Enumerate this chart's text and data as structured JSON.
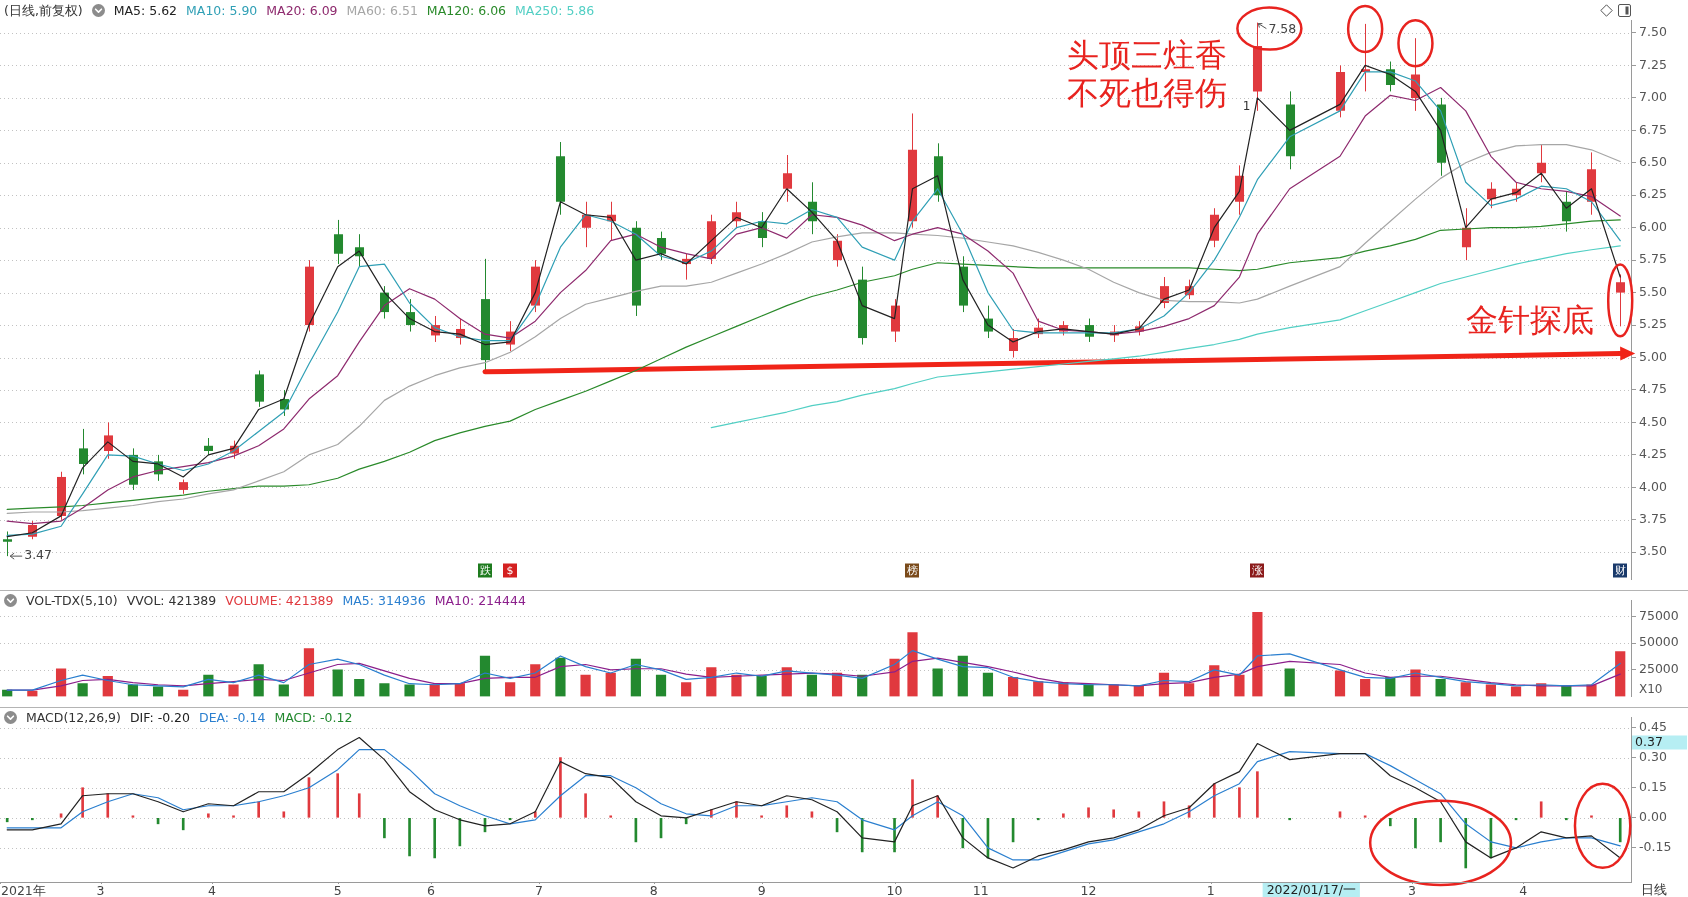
{
  "chart_data": [
    {
      "type": "candlestick",
      "title": "(日线,前复权)",
      "x": [
        "2021-02-03",
        "2021-02-10",
        "2021-02-18",
        "2021-02-24",
        "2021-03-03",
        "2021-03-10",
        "2021-03-17",
        "2021-03-24",
        "2021-03-31",
        "2021-04-07",
        "2021-04-14",
        "2021-04-21",
        "2021-04-28",
        "2021-05-06",
        "2021-05-12",
        "2021-05-19",
        "2021-05-26",
        "2021-06-02",
        "2021-06-09",
        "2021-06-16",
        "2021-06-23",
        "2021-06-30",
        "2021-07-07",
        "2021-07-14",
        "2021-07-21",
        "2021-07-28",
        "2021-08-04",
        "2021-08-11",
        "2021-08-18",
        "2021-08-25",
        "2021-09-01",
        "2021-09-08",
        "2021-09-15",
        "2021-09-22",
        "2021-09-29",
        "2021-10-08",
        "2021-10-13",
        "2021-10-20",
        "2021-10-27",
        "2021-11-03",
        "2021-11-10",
        "2021-11-17",
        "2021-11-24",
        "2021-12-01",
        "2021-12-08",
        "2021-12-15",
        "2021-12-22",
        "2021-12-29",
        "2022-01-05",
        "2022-01-12",
        "2022-01-17",
        "2022-01-26",
        "2022-02-09",
        "2022-02-16",
        "2022-02-23",
        "2022-03-02",
        "2022-03-09",
        "2022-03-16",
        "2022-03-23",
        "2022-03-30",
        "2022-04-06",
        "2022-04-13",
        "2022-04-20",
        "2022-04-28"
      ],
      "ohlc": [
        [
          3.6,
          3.66,
          3.47,
          3.58
        ],
        [
          3.62,
          3.74,
          3.6,
          3.71
        ],
        [
          3.78,
          4.12,
          3.75,
          4.08
        ],
        [
          4.3,
          4.45,
          4.1,
          4.18
        ],
        [
          4.28,
          4.5,
          4.22,
          4.4
        ],
        [
          4.25,
          4.3,
          3.98,
          4.02
        ],
        [
          4.2,
          4.25,
          4.05,
          4.1
        ],
        [
          3.98,
          4.06,
          3.95,
          4.04
        ],
        [
          4.32,
          4.38,
          4.25,
          4.28
        ],
        [
          4.26,
          4.36,
          4.22,
          4.32
        ],
        [
          4.87,
          4.9,
          4.62,
          4.66
        ],
        [
          4.68,
          4.75,
          4.55,
          4.6
        ],
        [
          5.25,
          5.75,
          5.2,
          5.7
        ],
        [
          5.95,
          6.06,
          5.72,
          5.8
        ],
        [
          5.85,
          5.95,
          5.7,
          5.78
        ],
        [
          5.5,
          5.55,
          5.3,
          5.35
        ],
        [
          5.35,
          5.45,
          5.2,
          5.25
        ],
        [
          5.17,
          5.32,
          5.12,
          5.25
        ],
        [
          5.15,
          5.3,
          5.1,
          5.22
        ],
        [
          5.45,
          5.76,
          4.89,
          4.98
        ],
        [
          5.1,
          5.28,
          5.05,
          5.2
        ],
        [
          5.4,
          5.75,
          5.35,
          5.7
        ],
        [
          6.55,
          6.66,
          6.1,
          6.2
        ],
        [
          6.0,
          6.2,
          5.85,
          6.1
        ],
        [
          6.05,
          6.2,
          5.9,
          6.1
        ],
        [
          6.0,
          6.05,
          5.32,
          5.4
        ],
        [
          5.92,
          5.97,
          5.75,
          5.8
        ],
        [
          5.72,
          5.8,
          5.6,
          5.76
        ],
        [
          5.76,
          6.1,
          5.72,
          6.05
        ],
        [
          6.05,
          6.2,
          6.0,
          6.12
        ],
        [
          6.05,
          6.12,
          5.85,
          5.92
        ],
        [
          6.3,
          6.56,
          6.2,
          6.42
        ],
        [
          6.2,
          6.35,
          5.95,
          6.05
        ],
        [
          5.75,
          5.95,
          5.7,
          5.9
        ],
        [
          5.6,
          5.7,
          5.1,
          5.15
        ],
        [
          5.2,
          5.45,
          5.12,
          5.4
        ],
        [
          6.05,
          6.88,
          6.0,
          6.6
        ],
        [
          6.55,
          6.65,
          6.2,
          6.25
        ],
        [
          5.7,
          5.78,
          5.35,
          5.4
        ],
        [
          5.3,
          5.4,
          5.15,
          5.2
        ],
        [
          5.05,
          5.22,
          5.0,
          5.15
        ],
        [
          5.18,
          5.3,
          5.15,
          5.23
        ],
        [
          5.2,
          5.28,
          5.17,
          5.25
        ],
        [
          5.25,
          5.3,
          5.12,
          5.16
        ],
        [
          5.17,
          5.25,
          5.12,
          5.2
        ],
        [
          5.2,
          5.28,
          5.17,
          5.24
        ],
        [
          5.42,
          5.62,
          5.38,
          5.55
        ],
        [
          5.48,
          5.6,
          5.45,
          5.55
        ],
        [
          5.9,
          6.15,
          5.85,
          6.1
        ],
        [
          6.2,
          6.48,
          6.1,
          6.4
        ],
        [
          7.05,
          7.58,
          6.9,
          7.4
        ],
        [
          6.95,
          7.05,
          6.45,
          6.55
        ],
        [
          6.9,
          7.25,
          6.85,
          7.2
        ],
        [
          7.2,
          7.57,
          7.05,
          7.22
        ],
        [
          7.22,
          7.28,
          7.05,
          7.1
        ],
        [
          7.0,
          7.46,
          6.9,
          7.18
        ],
        [
          6.95,
          7.0,
          6.4,
          6.5
        ],
        [
          5.85,
          6.15,
          5.75,
          6.0
        ],
        [
          6.22,
          6.35,
          6.15,
          6.3
        ],
        [
          6.25,
          6.35,
          6.2,
          6.3
        ],
        [
          6.42,
          6.64,
          6.35,
          6.5
        ],
        [
          6.2,
          6.28,
          5.97,
          6.05
        ],
        [
          6.2,
          6.58,
          6.1,
          6.45
        ],
        [
          5.5,
          5.64,
          5.24,
          5.58
        ]
      ],
      "colors": [
        "#23892f",
        "#e0393e",
        "#e0393e",
        "#23892f",
        "#e0393e",
        "#23892f",
        "#23892f",
        "#e0393e",
        "#23892f",
        "#e0393e",
        "#23892f",
        "#23892f",
        "#e0393e",
        "#23892f",
        "#23892f",
        "#23892f",
        "#23892f",
        "#e0393e",
        "#e0393e",
        "#23892f",
        "#e0393e",
        "#e0393e",
        "#23892f",
        "#e0393e",
        "#e0393e",
        "#23892f",
        "#23892f",
        "#e0393e",
        "#e0393e",
        "#e0393e",
        "#23892f",
        "#e0393e",
        "#23892f",
        "#e0393e",
        "#23892f",
        "#e0393e",
        "#e0393e",
        "#23892f",
        "#23892f",
        "#23892f",
        "#e0393e",
        "#e0393e",
        "#e0393e",
        "#23892f",
        "#e0393e",
        "#e0393e",
        "#e0393e",
        "#e0393e",
        "#e0393e",
        "#e0393e",
        "#e0393e",
        "#23892f",
        "#e0393e",
        "#e0393e",
        "#23892f",
        "#e0393e",
        "#23892f",
        "#e0393e",
        "#e0393e",
        "#e0393e",
        "#e0393e",
        "#23892f",
        "#e0393e",
        "#e0393e"
      ],
      "series": [
        {
          "name": "MA5: 5.62",
          "type": "line",
          "color": "#222222",
          "values": [
            3.62,
            3.65,
            3.78,
            4.15,
            4.35,
            4.2,
            4.18,
            4.08,
            4.25,
            4.3,
            4.6,
            4.68,
            5.25,
            5.7,
            5.82,
            5.5,
            5.3,
            5.2,
            5.18,
            5.1,
            5.12,
            5.5,
            6.2,
            6.1,
            6.08,
            5.75,
            5.8,
            5.72,
            5.9,
            6.08,
            6.0,
            6.3,
            6.12,
            5.9,
            5.4,
            5.3,
            6.3,
            6.4,
            5.6,
            5.25,
            5.12,
            5.2,
            5.22,
            5.2,
            5.18,
            5.22,
            5.45,
            5.52,
            6.0,
            6.28,
            7.0,
            6.75,
            6.95,
            7.25,
            7.18,
            7.05,
            6.75,
            6.0,
            6.22,
            6.27,
            6.42,
            6.15,
            6.3,
            5.62
          ]
        },
        {
          "name": "MA10: 5.90",
          "type": "line",
          "color": "#2f9fb5",
          "values": [
            3.63,
            3.64,
            3.7,
            3.95,
            4.25,
            4.24,
            4.18,
            4.13,
            4.18,
            4.28,
            4.43,
            4.58,
            4.95,
            5.35,
            5.7,
            5.72,
            5.42,
            5.23,
            5.16,
            5.13,
            5.13,
            5.4,
            5.85,
            6.1,
            6.05,
            5.95,
            5.78,
            5.73,
            5.82,
            6.0,
            6.05,
            6.03,
            6.14,
            6.08,
            5.85,
            5.75,
            6.05,
            6.3,
            5.95,
            5.5,
            5.21,
            5.19,
            5.19,
            5.19,
            5.19,
            5.22,
            5.32,
            5.5,
            5.75,
            6.08,
            6.37,
            6.7,
            6.9,
            7.2,
            7.2,
            7.13,
            6.9,
            6.35,
            6.17,
            6.22,
            6.32,
            6.3,
            6.2,
            5.9
          ]
        },
        {
          "name": "MA20: 6.09",
          "type": "line",
          "color": "#8e2a6e",
          "values": [
            3.74,
            3.72,
            3.74,
            3.84,
            3.98,
            4.08,
            4.13,
            4.16,
            4.19,
            4.24,
            4.32,
            4.45,
            4.68,
            4.86,
            5.12,
            5.4,
            5.53,
            5.45,
            5.3,
            5.18,
            5.15,
            5.28,
            5.5,
            5.67,
            5.9,
            5.95,
            5.85,
            5.8,
            5.76,
            5.95,
            6.0,
            5.92,
            6.1,
            6.08,
            6.02,
            5.9,
            5.95,
            6.0,
            5.95,
            5.82,
            5.65,
            5.28,
            5.21,
            5.2,
            5.18,
            5.2,
            5.24,
            5.3,
            5.4,
            5.62,
            5.95,
            6.3,
            6.55,
            6.86,
            7.02,
            6.98,
            7.08,
            6.9,
            6.55,
            6.35,
            6.3,
            6.28,
            6.24,
            6.09
          ]
        },
        {
          "name": "MA60: 6.51",
          "type": "line",
          "color": "#a6a6a6",
          "values": [
            3.8,
            3.81,
            3.81,
            3.82,
            3.84,
            3.86,
            3.89,
            3.91,
            3.95,
            3.98,
            4.05,
            4.12,
            4.25,
            4.33,
            4.47,
            4.67,
            4.78,
            4.86,
            4.92,
            4.96,
            5.04,
            5.16,
            5.3,
            5.41,
            5.46,
            5.51,
            5.55,
            5.55,
            5.58,
            5.65,
            5.72,
            5.8,
            5.89,
            5.93,
            5.96,
            5.96,
            5.95,
            5.94,
            5.92,
            5.89,
            5.86,
            5.81,
            5.75,
            5.68,
            5.58,
            5.5,
            5.44,
            5.43,
            5.43,
            5.42,
            5.45,
            5.55,
            5.7,
            5.88,
            6.05,
            6.22,
            6.38,
            6.5,
            6.58,
            6.63,
            6.64,
            6.64,
            6.6,
            6.51
          ]
        },
        {
          "name": "MA120: 6.06",
          "type": "line",
          "color": "#2a8a2a",
          "values": [
            3.83,
            3.84,
            3.85,
            3.86,
            3.88,
            3.9,
            3.92,
            3.94,
            3.97,
            3.99,
            4.01,
            4.01,
            4.02,
            4.07,
            4.14,
            4.2,
            4.27,
            4.36,
            4.42,
            4.47,
            4.51,
            4.6,
            4.67,
            4.74,
            4.82,
            4.9,
            4.99,
            5.08,
            5.16,
            5.24,
            5.32,
            5.4,
            5.47,
            5.52,
            5.58,
            5.63,
            5.68,
            5.73,
            5.72,
            5.71,
            5.7,
            5.69,
            5.69,
            5.69,
            5.69,
            5.69,
            5.69,
            5.69,
            5.68,
            5.67,
            5.68,
            5.73,
            5.77,
            5.82,
            5.86,
            5.91,
            5.98,
            5.99,
            6.0,
            6.0,
            6.01,
            6.03,
            6.05,
            6.06
          ]
        },
        {
          "name": "MA250: 5.86",
          "type": "line",
          "color": "#52cfc4",
          "values": [
            null,
            null,
            null,
            null,
            null,
            null,
            null,
            null,
            null,
            null,
            null,
            null,
            null,
            null,
            null,
            null,
            null,
            null,
            null,
            null,
            null,
            null,
            null,
            null,
            null,
            null,
            null,
            null,
            4.46,
            4.5,
            4.54,
            4.58,
            4.63,
            4.66,
            4.71,
            4.76,
            4.8,
            4.85,
            4.87,
            4.89,
            4.91,
            4.93,
            4.95,
            4.97,
            4.99,
            5.01,
            5.04,
            5.07,
            5.1,
            5.14,
            5.18,
            5.23,
            5.29,
            5.36,
            5.43,
            5.5,
            5.57,
            5.62,
            5.67,
            5.72,
            5.76,
            5.8,
            5.83,
            5.86
          ]
        },
        {
          "type": "line",
          "color": "#f02418",
          "x": [
            "2021-06-16",
            "2022-04-28"
          ],
          "values": [
            4.89,
            5.03
          ]
        }
      ],
      "xlim": [
        "2021-02-01",
        "2022-05-01"
      ],
      "ylim": [
        3.29,
        7.6
      ],
      "yticks": [
        {
          "value": 3.5,
          "label": "3.50"
        },
        {
          "value": 3.75,
          "label": "3.75"
        },
        {
          "value": 4,
          "label": "4.00"
        },
        {
          "value": 4.25,
          "label": "4.25"
        },
        {
          "value": 4.5,
          "label": "4.50"
        },
        {
          "value": 4.75,
          "label": "4.75"
        },
        {
          "value": 5,
          "label": "5.00"
        },
        {
          "value": 5.25,
          "label": "5.25"
        },
        {
          "value": 5.5,
          "label": "5.50"
        },
        {
          "value": 5.75,
          "label": "5.75"
        },
        {
          "value": 6,
          "label": "6.00"
        },
        {
          "value": 6.25,
          "label": "6.25"
        },
        {
          "value": 6.5,
          "label": "6.50"
        },
        {
          "value": 6.75,
          "label": "6.75"
        },
        {
          "value": 7,
          "label": "7.00"
        },
        {
          "value": 7.25,
          "label": "7.25"
        },
        {
          "value": 7.5,
          "label": "7.50"
        }
      ],
      "grid": "y",
      "legend": "top left",
      "tick_labels": "y",
      "annotations": [
        {
          "text": "7.58",
          "x": "2022-01-17",
          "y": 7.58
        },
        {
          "text": "3.47",
          "x": "2021-02-03",
          "y": 3.47
        },
        "1",
        "头顶三炷香不死也得伤",
        {
          "text": "金针探底",
          "x": "2022-04-28",
          "y": 5.24
        },
        {
          "text": "跌",
          "x": "2021-06-16"
        },
        {
          "text": "$",
          "x": "2021-06-23"
        },
        {
          "text": "榜",
          "x": "2021-10-13"
        },
        {
          "text": "涨",
          "x": "2022-01-17"
        },
        {
          "text": "财",
          "x": "2022-04-28"
        }
      ]
    },
    {
      "type": "bar",
      "title": "VOL-TDX(5,10)",
      "subtitle": "VVOL: 421389",
      "ylabel": "X10",
      "x": [
        "2021-02-03",
        "2021-02-10",
        "2021-02-18",
        "2021-02-24",
        "2021-03-03",
        "2021-03-10",
        "2021-03-17",
        "2021-03-24",
        "2021-03-31",
        "2021-04-07",
        "2021-04-14",
        "2021-04-21",
        "2021-04-28",
        "2021-05-06",
        "2021-05-12",
        "2021-05-19",
        "2021-05-26",
        "2021-06-02",
        "2021-06-09",
        "2021-06-16",
        "2021-06-23",
        "2021-06-30",
        "2021-07-07",
        "2021-07-14",
        "2021-07-21",
        "2021-07-28",
        "2021-08-04",
        "2021-08-11",
        "2021-08-18",
        "2021-08-25",
        "2021-09-01",
        "2021-09-08",
        "2021-09-15",
        "2021-09-22",
        "2021-09-29",
        "2021-10-08",
        "2021-10-13",
        "2021-10-20",
        "2021-10-27",
        "2021-11-03",
        "2021-11-10",
        "2021-11-17",
        "2021-11-24",
        "2021-12-01",
        "2021-12-08",
        "2021-12-15",
        "2021-12-22",
        "2021-12-29",
        "2022-01-05",
        "2022-01-12",
        "2022-01-17",
        "2022-01-26",
        "2022-02-09",
        "2022-02-16",
        "2022-02-23",
        "2022-03-02",
        "2022-03-09",
        "2022-03-16",
        "2022-03-23",
        "2022-03-30",
        "2022-04-06",
        "2022-04-13",
        "2022-04-20",
        "2022-04-28"
      ],
      "series": [
        {
          "name": "VOLUME: 421389",
          "colors": [
            "#23892f",
            "#e0393e",
            "#e0393e",
            "#23892f",
            "#e0393e",
            "#23892f",
            "#23892f",
            "#e0393e",
            "#23892f",
            "#e0393e",
            "#23892f",
            "#23892f",
            "#e0393e",
            "#23892f",
            "#23892f",
            "#23892f",
            "#23892f",
            "#e0393e",
            "#e0393e",
            "#23892f",
            "#e0393e",
            "#e0393e",
            "#23892f",
            "#e0393e",
            "#e0393e",
            "#23892f",
            "#23892f",
            "#e0393e",
            "#e0393e",
            "#e0393e",
            "#23892f",
            "#e0393e",
            "#23892f",
            "#e0393e",
            "#23892f",
            "#e0393e",
            "#e0393e",
            "#23892f",
            "#23892f",
            "#23892f",
            "#e0393e",
            "#e0393e",
            "#e0393e",
            "#23892f",
            "#e0393e",
            "#e0393e",
            "#e0393e",
            "#e0393e",
            "#e0393e",
            "#e0393e",
            "#e0393e",
            "#23892f",
            "#e0393e",
            "#e0393e",
            "#23892f",
            "#e0393e",
            "#23892f",
            "#e0393e",
            "#e0393e",
            "#e0393e",
            "#e0393e",
            "#23892f",
            "#e0393e",
            "#e0393e"
          ],
          "values": [
            6000,
            5000,
            26000,
            12000,
            19000,
            11000,
            9000,
            6000,
            20000,
            11000,
            30000,
            11000,
            45000,
            25000,
            16000,
            12000,
            11000,
            11000,
            12000,
            38000,
            13000,
            30000,
            36000,
            20000,
            22000,
            35000,
            20000,
            13000,
            27000,
            20000,
            19000,
            27000,
            20000,
            22000,
            20000,
            35000,
            60000,
            26000,
            38000,
            22000,
            18000,
            14000,
            13000,
            11000,
            11000,
            10000,
            22000,
            12000,
            29000,
            20000,
            79000,
            26000,
            24000,
            16000,
            18000,
            25000,
            16000,
            13000,
            11000,
            9000,
            12000,
            10000,
            11000,
            42000
          ]
        },
        {
          "name": "MA5: 314936",
          "type": "line",
          "color": "#2a7fcf",
          "values": [
            6000,
            6000,
            15000,
            20000,
            15000,
            11000,
            10000,
            9000,
            16000,
            13000,
            20000,
            13000,
            30000,
            35000,
            30000,
            20000,
            12000,
            11000,
            12000,
            22000,
            17000,
            22000,
            38000,
            28000,
            22000,
            30000,
            25000,
            16000,
            18000,
            22000,
            19000,
            24000,
            22000,
            20000,
            17000,
            30000,
            43000,
            35000,
            28000,
            27000,
            18000,
            14000,
            12000,
            11000,
            11000,
            10000,
            15000,
            14000,
            25000,
            20000,
            38000,
            40000,
            25000,
            18000,
            17000,
            22000,
            18000,
            14000,
            12000,
            10000,
            11000,
            10000,
            11000,
            31000
          ]
        },
        {
          "name": "MA10: 214444",
          "type": "line",
          "color": "#8b1f8b",
          "values": [
            6000,
            6000,
            10000,
            15000,
            16000,
            13000,
            11000,
            10000,
            12000,
            14000,
            16000,
            15000,
            22000,
            30000,
            31000,
            24000,
            17000,
            12000,
            12000,
            17000,
            18000,
            18000,
            28000,
            30000,
            25000,
            26000,
            26000,
            21000,
            18000,
            19000,
            20000,
            21000,
            22000,
            21000,
            19000,
            23000,
            33000,
            36000,
            32000,
            28000,
            23000,
            17000,
            13000,
            12000,
            11000,
            10000,
            12000,
            13000,
            18000,
            21000,
            28000,
            33000,
            30000,
            22000,
            18000,
            19000,
            19000,
            16000,
            13000,
            11000,
            10000,
            10000,
            10000,
            21000
          ]
        }
      ],
      "xlim": [
        "2021-02-01",
        "2022-05-01"
      ],
      "ylim": [
        0,
        90000
      ],
      "yticks": [
        25000,
        50000,
        75000
      ],
      "grid": "y",
      "legend": "top left",
      "tick_labels": "y"
    },
    {
      "type": "bar",
      "title": "MACD(12,26,9)",
      "xlabel": "日线",
      "x": [
        "2021-02-03",
        "2021-02-10",
        "2021-02-18",
        "2021-02-24",
        "2021-03-03",
        "2021-03-10",
        "2021-03-17",
        "2021-03-24",
        "2021-03-31",
        "2021-04-07",
        "2021-04-14",
        "2021-04-21",
        "2021-04-28",
        "2021-05-06",
        "2021-05-12",
        "2021-05-19",
        "2021-05-26",
        "2021-06-02",
        "2021-06-09",
        "2021-06-16",
        "2021-06-23",
        "2021-06-30",
        "2021-07-07",
        "2021-07-14",
        "2021-07-21",
        "2021-07-28",
        "2021-08-04",
        "2021-08-11",
        "2021-08-18",
        "2021-08-25",
        "2021-09-01",
        "2021-09-08",
        "2021-09-15",
        "2021-09-22",
        "2021-09-29",
        "2021-10-08",
        "2021-10-13",
        "2021-10-20",
        "2021-10-27",
        "2021-11-03",
        "2021-11-10",
        "2021-11-17",
        "2021-11-24",
        "2021-12-01",
        "2021-12-08",
        "2021-12-15",
        "2021-12-22",
        "2021-12-29",
        "2022-01-05",
        "2022-01-12",
        "2022-01-17",
        "2022-01-26",
        "2022-02-09",
        "2022-02-16",
        "2022-02-23",
        "2022-03-02",
        "2022-03-09",
        "2022-03-16",
        "2022-03-23",
        "2022-03-30",
        "2022-04-06",
        "2022-04-13",
        "2022-04-20",
        "2022-04-28"
      ],
      "series": [
        {
          "name": "DIF: -0.20",
          "type": "line",
          "color": "#222222",
          "values": [
            -0.06,
            -0.06,
            -0.03,
            0.11,
            0.12,
            0.12,
            0.08,
            0.03,
            0.07,
            0.06,
            0.13,
            0.13,
            0.22,
            0.34,
            0.4,
            0.29,
            0.13,
            0.04,
            -0.01,
            -0.04,
            -0.03,
            0.03,
            0.28,
            0.22,
            0.2,
            0.08,
            0.01,
            0.0,
            0.04,
            0.08,
            0.06,
            0.11,
            0.09,
            0.03,
            -0.1,
            -0.12,
            0.06,
            0.11,
            -0.1,
            -0.2,
            -0.25,
            -0.19,
            -0.16,
            -0.12,
            -0.1,
            -0.06,
            0.01,
            0.05,
            0.17,
            0.23,
            0.37,
            0.29,
            0.32,
            0.32,
            0.21,
            0.15,
            0.08,
            -0.12,
            -0.2,
            -0.15,
            -0.07,
            -0.1,
            -0.09,
            -0.2
          ]
        },
        {
          "name": "DEA: -0.14",
          "type": "line",
          "color": "#2a7fcf",
          "values": [
            -0.05,
            -0.05,
            -0.05,
            0.03,
            0.08,
            0.12,
            0.1,
            0.04,
            0.06,
            0.06,
            0.08,
            0.11,
            0.15,
            0.24,
            0.34,
            0.34,
            0.24,
            0.12,
            0.06,
            0.01,
            -0.03,
            -0.01,
            0.11,
            0.21,
            0.21,
            0.15,
            0.07,
            0.02,
            0.01,
            0.06,
            0.06,
            0.08,
            0.1,
            0.08,
            -0.01,
            -0.06,
            0.01,
            0.08,
            0.01,
            -0.15,
            -0.21,
            -0.21,
            -0.17,
            -0.13,
            -0.11,
            -0.07,
            -0.03,
            0.03,
            0.11,
            0.17,
            0.28,
            0.33,
            0.32,
            0.32,
            0.26,
            0.19,
            0.12,
            -0.03,
            -0.12,
            -0.15,
            -0.12,
            -0.1,
            -0.1,
            -0.14
          ]
        },
        {
          "name": "MACD: -0.12",
          "colors": [
            "#23892f",
            "#23892f",
            "#e0393e",
            "#e0393e",
            "#e0393e",
            "#e0393e",
            "#23892f",
            "#23892f",
            "#e0393e",
            "#e0393e",
            "#e0393e",
            "#e0393e",
            "#e0393e",
            "#e0393e",
            "#e0393e",
            "#23892f",
            "#23892f",
            "#23892f",
            "#23892f",
            "#23892f",
            "#23892f",
            "#e0393e",
            "#e0393e",
            "#e0393e",
            "#e0393e",
            "#23892f",
            "#23892f",
            "#23892f",
            "#e0393e",
            "#e0393e",
            "#e0393e",
            "#e0393e",
            "#e0393e",
            "#23892f",
            "#23892f",
            "#23892f",
            "#e0393e",
            "#e0393e",
            "#23892f",
            "#23892f",
            "#23892f",
            "#23892f",
            "#e0393e",
            "#e0393e",
            "#e0393e",
            "#e0393e",
            "#e0393e",
            "#e0393e",
            "#e0393e",
            "#e0393e",
            "#e0393e",
            "#23892f",
            "#e0393e",
            "#e0393e",
            "#23892f",
            "#23892f",
            "#23892f",
            "#23892f",
            "#23892f",
            "#23892f",
            "#e0393e",
            "#23892f",
            "#e0393e",
            "#23892f"
          ],
          "values": [
            -0.02,
            -0.01,
            0.02,
            0.15,
            0.12,
            0.01,
            -0.03,
            -0.06,
            0.02,
            0.01,
            0.08,
            0.03,
            0.2,
            0.22,
            0.12,
            -0.1,
            -0.19,
            -0.2,
            -0.14,
            -0.07,
            -0.01,
            0.03,
            0.3,
            0.12,
            0.01,
            -0.12,
            -0.1,
            -0.03,
            0.04,
            0.08,
            0.01,
            0.06,
            0.03,
            -0.07,
            -0.17,
            -0.17,
            0.19,
            0.11,
            -0.15,
            -0.2,
            -0.12,
            -0.01,
            0.02,
            0.05,
            0.04,
            0.03,
            0.08,
            0.06,
            0.17,
            0.15,
            0.23,
            -0.01,
            0.03,
            0.01,
            -0.04,
            -0.15,
            -0.12,
            -0.25,
            -0.2,
            -0.01,
            0.08,
            -0.01,
            0.01,
            -0.12
          ]
        }
      ],
      "xlim": [
        "2021-02-01",
        "2022-05-01"
      ],
      "xticks": [
        {
          "value": "2021-02-01",
          "label": "2021年"
        },
        {
          "value": "2021-03-01",
          "label": "3"
        },
        {
          "value": "2021-04-01",
          "label": "4"
        },
        {
          "value": "2021-05-06",
          "label": "5"
        },
        {
          "value": "2021-06-01",
          "label": "6"
        },
        {
          "value": "2021-07-01",
          "label": "7"
        },
        {
          "value": "2021-08-02",
          "label": "8"
        },
        {
          "value": "2021-09-01",
          "label": "9"
        },
        {
          "value": "2021-10-08",
          "label": "10"
        },
        {
          "value": "2021-11-01",
          "label": "11"
        },
        {
          "value": "2021-12-01",
          "label": "12"
        },
        {
          "value": "2022-01-04",
          "label": "1"
        },
        {
          "value": "2022-03-01",
          "label": "3"
        },
        {
          "value": "2022-04-01",
          "label": "4"
        }
      ],
      "ylim": [
        -0.32,
        0.5
      ],
      "yticks": [
        {
          "value": -0.15,
          "label": "-0.15"
        },
        {
          "value": 0,
          "label": "0.00"
        },
        {
          "value": 0.15,
          "label": "0.15"
        },
        {
          "value": 0.3,
          "label": "0.30"
        },
        {
          "value": 0.45,
          "label": "0.45"
        }
      ],
      "grid": "y",
      "legend": "top left",
      "annotations": [
        "0.37",
        "2022/01/17/一"
      ]
    }
  ]
}
